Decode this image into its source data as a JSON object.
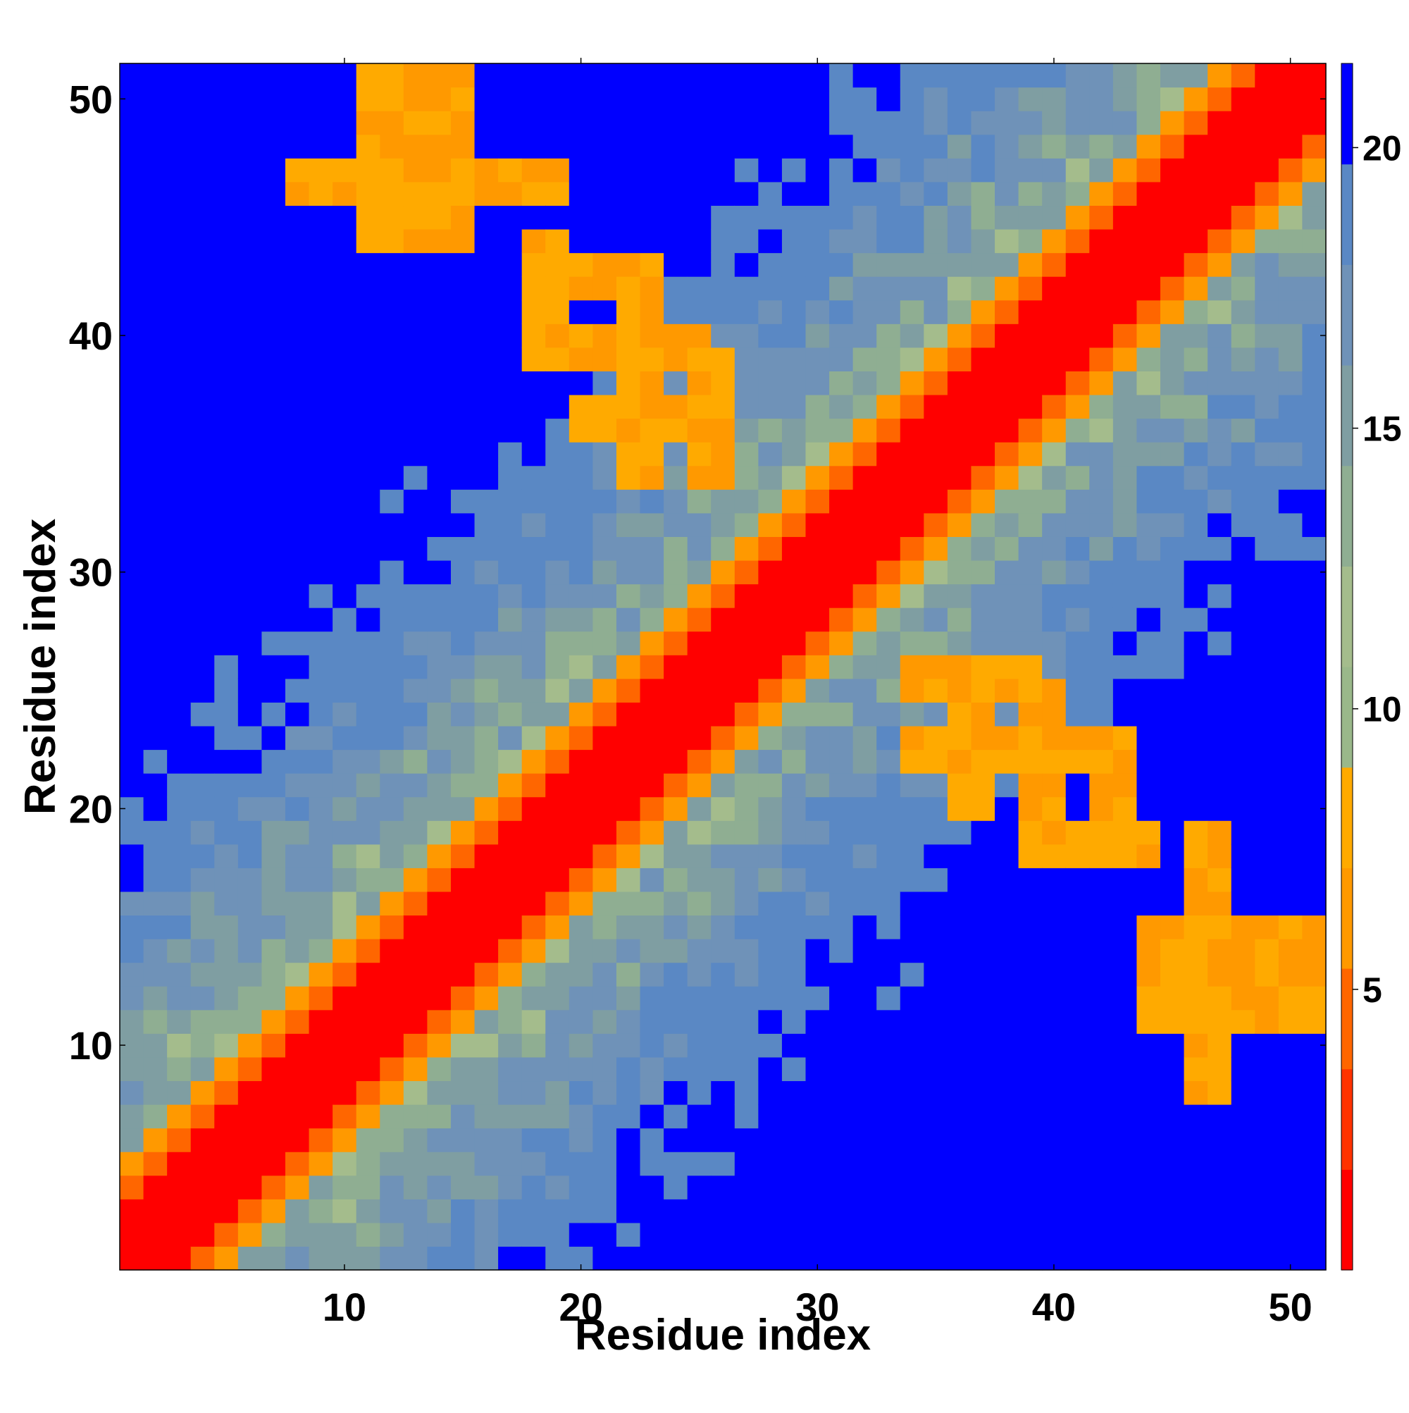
{
  "chart_data": {
    "type": "heatmap",
    "title": "",
    "xlabel": "Residue index",
    "ylabel": "Residue index",
    "xlim": [
      0.5,
      51.5
    ],
    "ylim": [
      0.5,
      51.5
    ],
    "x_ticks": [
      10,
      20,
      30,
      40,
      50
    ],
    "y_ticks": [
      10,
      20,
      30,
      40,
      50
    ],
    "colorbar": {
      "ticks": [
        5,
        10,
        15,
        20
      ],
      "range": [
        0,
        21.5
      ],
      "colors": [
        "#ff0000",
        "#ff3300",
        "#ff6600",
        "#ff9900",
        "#ffaa00",
        "#9ab88a",
        "#a4bc8c",
        "#8fae92",
        "#7f9ea2",
        "#6f92b8",
        "#5a88c4",
        "#0000ff"
      ]
    },
    "values_description": "Symmetric residue-residue distance matrix; diagonal ~0, off-diagonal increases with |i-j| with distinct contact patches.",
    "contact_patches": [
      {
        "x": [
          11,
          15
        ],
        "y": [
          44,
          51
        ],
        "level": "orange"
      },
      {
        "x": [
          18,
          19
        ],
        "y": [
          39,
          44
        ],
        "level": "orange"
      },
      {
        "x": [
          22,
          23
        ],
        "y": [
          34,
          43
        ],
        "level": "orange"
      },
      {
        "x": [
          25,
          26
        ],
        "y": [
          34,
          39
        ],
        "level": "orange"
      },
      {
        "x": [
          36,
          37
        ],
        "y": [
          20,
          26
        ],
        "level": "orange"
      },
      {
        "x": [
          39,
          40
        ],
        "y": [
          19,
          25
        ],
        "level": "orange"
      },
      {
        "x": [
          42,
          43
        ],
        "y": [
          18,
          22
        ],
        "level": "orange"
      },
      {
        "x": [
          46,
          47
        ],
        "y": [
          8,
          19
        ],
        "level": "orange"
      }
    ]
  }
}
